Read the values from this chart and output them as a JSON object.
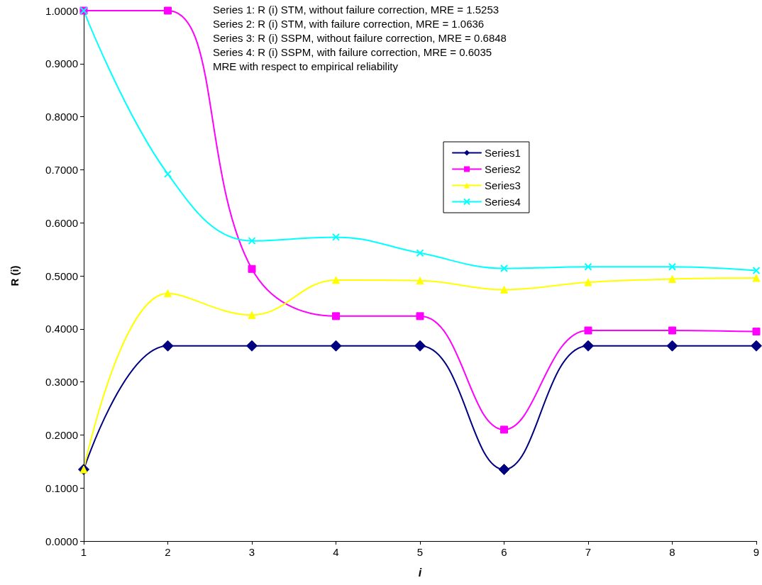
{
  "chart_data": {
    "type": "line",
    "xlabel": "i",
    "ylabel": "R (i)",
    "x": [
      1,
      2,
      3,
      4,
      5,
      6,
      7,
      8,
      9
    ],
    "xlim": [
      1,
      9
    ],
    "xticks": [
      1,
      2,
      3,
      4,
      5,
      6,
      7,
      8,
      9
    ],
    "ylim": [
      0,
      1
    ],
    "yticks": [
      {
        "value": 0,
        "label": "0.0000"
      },
      {
        "value": 0.1,
        "label": "0.1000"
      },
      {
        "value": 0.2,
        "label": "0.2000"
      },
      {
        "value": 0.3,
        "label": "0.3000"
      },
      {
        "value": 0.4,
        "label": "0.4000"
      },
      {
        "value": 0.5,
        "label": "0.5000"
      },
      {
        "value": 0.6,
        "label": "0.6000"
      },
      {
        "value": 0.7,
        "label": "0.7000"
      },
      {
        "value": 0.8,
        "label": "0.8000"
      },
      {
        "value": 0.9,
        "label": "0.9000"
      },
      {
        "value": 1,
        "label": "1.0000"
      }
    ],
    "grid": false,
    "legend": "right",
    "line_style": "solid",
    "annotations": [
      "Series 1: R (i) STM, without failure correction, MRE = 1.5253",
      "Series 2: R (i) STM, with failure correction, MRE = 1.0636",
      "Series 3: R (i) SSPM, without failure correction, MRE = 0.6848",
      "Series 4: R (i) SSPM, with failure correction, MRE = 0.6035",
      "MRE with respect to empirical reliability"
    ],
    "series": [
      {
        "name": "Series1",
        "color": "#000080",
        "marker": "diamond",
        "values": [
          0.135,
          0.368,
          0.368,
          0.368,
          0.368,
          0.135,
          0.368,
          0.368,
          0.368
        ]
      },
      {
        "name": "Series2",
        "color": "#ff00ff",
        "marker": "square",
        "values": [
          1.0,
          1.0,
          0.513,
          0.424,
          0.424,
          0.21,
          0.397,
          0.397,
          0.395
        ]
      },
      {
        "name": "Series3",
        "color": "#ffff00",
        "marker": "triangle",
        "values": [
          0.135,
          0.467,
          0.426,
          0.492,
          0.491,
          0.474,
          0.488,
          0.494,
          0.496
        ]
      },
      {
        "name": "Series4",
        "color": "#00ffff",
        "marker": "cross",
        "values": [
          1.0,
          0.692,
          0.566,
          0.573,
          0.543,
          0.514,
          0.517,
          0.517,
          0.51
        ]
      }
    ]
  }
}
